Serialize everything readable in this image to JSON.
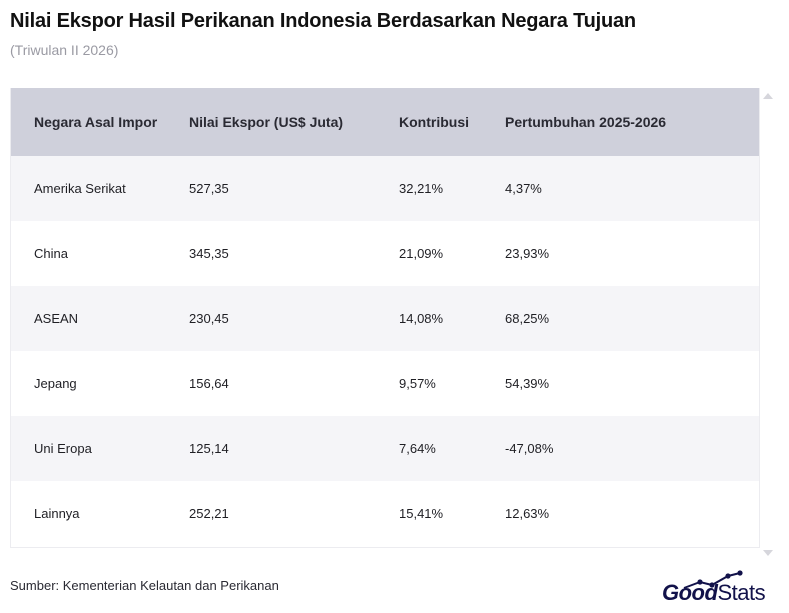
{
  "header": {
    "title": "Nilai Ekspor Hasil Perikanan Indonesia Berdasarkan Negara Tujuan",
    "subtitle": "(Triwulan II 2026)"
  },
  "table": {
    "columns": [
      "Negara Asal Impor",
      "Nilai Ekspor (US$ Juta)",
      "Kontribusi",
      "Pertumbuhan 2025-2026"
    ],
    "rows": [
      [
        "Amerika Serikat",
        "527,35",
        "32,21%",
        "4,37%"
      ],
      [
        "China",
        "345,35",
        "21,09%",
        "23,93%"
      ],
      [
        "ASEAN",
        "230,45",
        "14,08%",
        "68,25%"
      ],
      [
        "Jepang",
        "156,64",
        "9,57%",
        "54,39%"
      ],
      [
        "Uni Eropa",
        "125,14",
        "7,64%",
        "-47,08%"
      ],
      [
        "Lainnya",
        "252,21",
        "15,41%",
        "12,63%"
      ]
    ],
    "header_color": "#cfd0db",
    "stripe_color": "#f5f5f8"
  },
  "footer": {
    "source": "Sumber: Kementerian Kelautan dan Perikanan",
    "logo_good": "Good",
    "logo_stats": "Stats",
    "logo_color": "#12124a"
  }
}
